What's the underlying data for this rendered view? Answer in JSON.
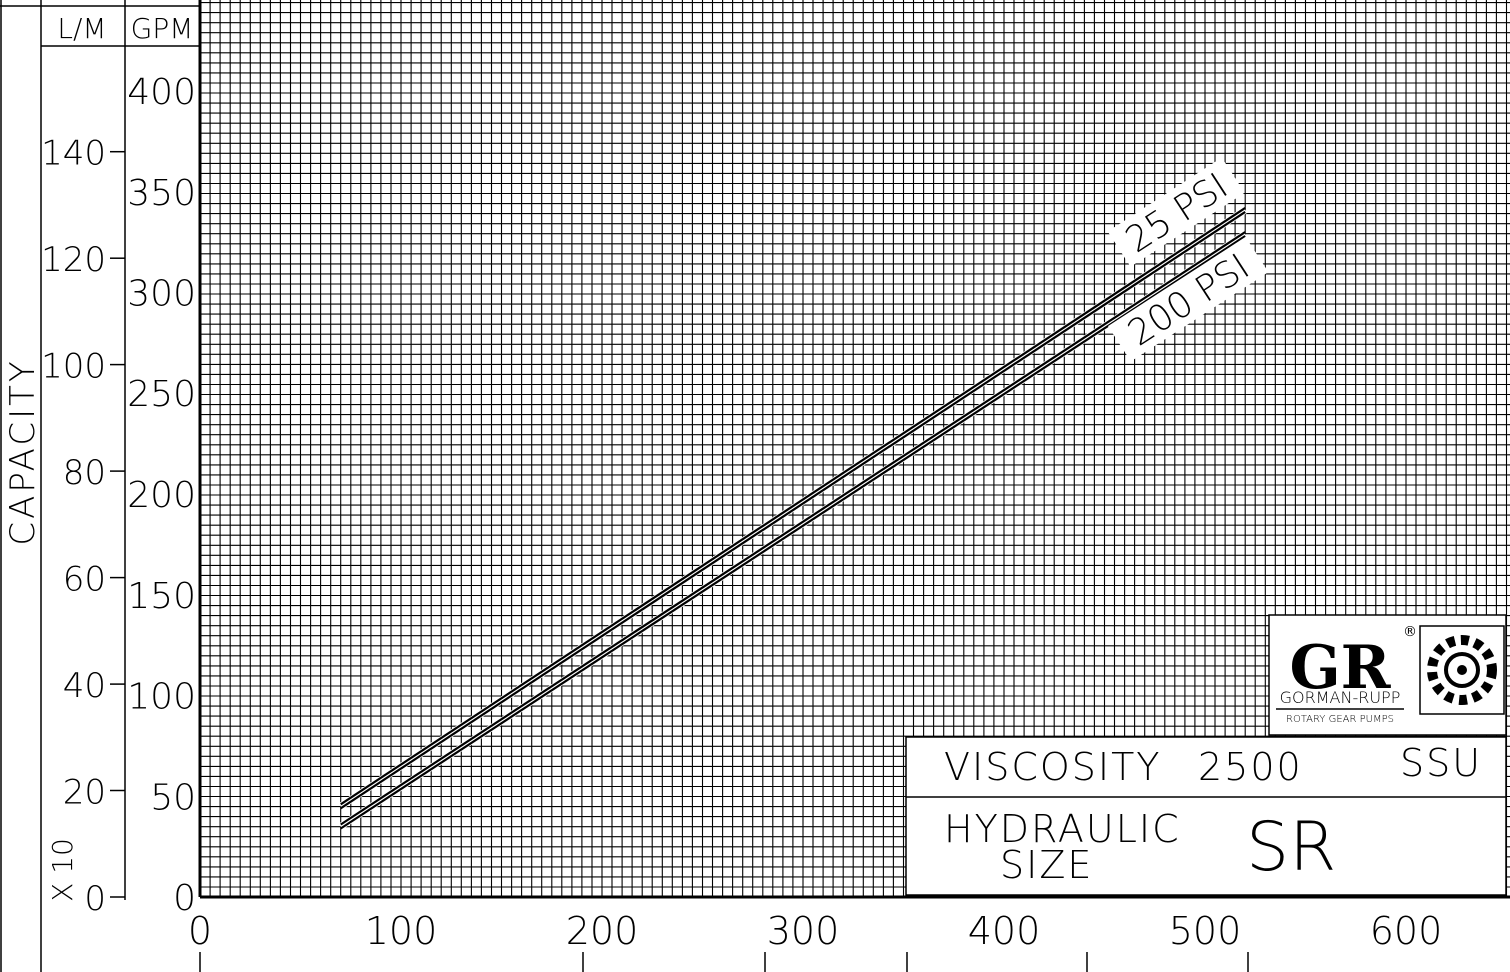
{
  "chart_data": {
    "type": "line",
    "title": "",
    "xlabel": "",
    "ylabel": "CAPACITY",
    "y_left_multiplier": "X 10",
    "y_units": [
      "L/M",
      "GPM"
    ],
    "x_ticks": [
      "0",
      "100",
      "200",
      "300",
      "400",
      "500",
      "600"
    ],
    "y_gpm_ticks": [
      "0",
      "50",
      "100",
      "150",
      "200",
      "250",
      "300",
      "350",
      "400"
    ],
    "y_lm_ticks": [
      "0",
      "20",
      "40",
      "60",
      "80",
      "100",
      "120",
      "140"
    ],
    "xlim": [
      0,
      650
    ],
    "ylim_gpm": [
      0,
      445
    ],
    "grid": true,
    "series": [
      {
        "name": "25 PSI",
        "x": [
          70,
          520
        ],
        "y": [
          45,
          341
        ]
      },
      {
        "name": "200 PSI",
        "x": [
          70,
          520
        ],
        "y": [
          35,
          329
        ]
      }
    ]
  },
  "info": {
    "viscosity_label": "VISCOSITY",
    "viscosity_value": "2500",
    "viscosity_unit": "SSU",
    "hydraulic_label_line1": "HYDRAULIC",
    "hydraulic_label_line2": "SIZE",
    "hydraulic_value": "SR"
  },
  "logo": {
    "letters": "GR",
    "brand": "GORMAN-RUPP",
    "tagline": "ROTARY GEAR PUMPS",
    "registered": "®"
  }
}
